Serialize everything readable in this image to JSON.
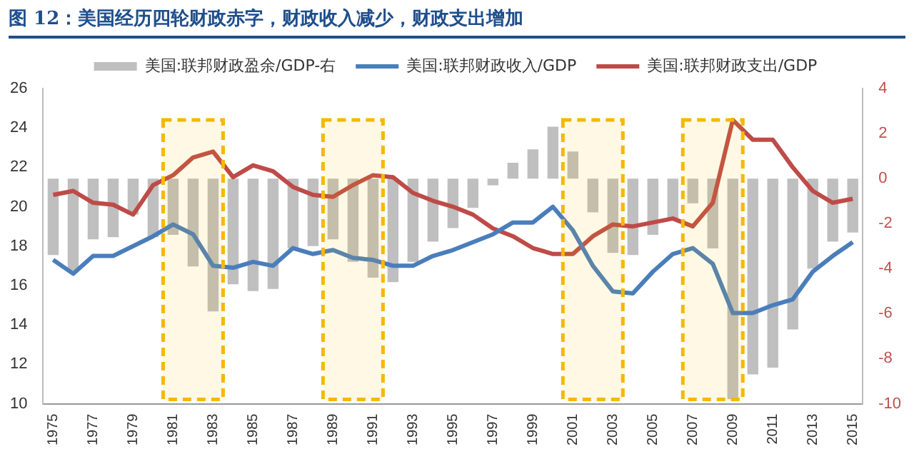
{
  "chart_data": {
    "type": "bar",
    "title": "图 12：美国经历四轮财政赤字，财政收入减少，财政支出增加",
    "categories": [
      "1975",
      null,
      "1977",
      null,
      "1979",
      null,
      "1981",
      null,
      "1983",
      null,
      "1985",
      null,
      "1987",
      null,
      "1989",
      null,
      "1991",
      null,
      "1993",
      null,
      "1995",
      null,
      "1997",
      null,
      "1999",
      null,
      "2001",
      null,
      "2003",
      null,
      "2005",
      null,
      "2007",
      null,
      "2009",
      null,
      "2011",
      null,
      "2013",
      null,
      "2015"
    ],
    "series": [
      {
        "name": "美国:联邦财政盈余/GDP-右",
        "axis": "y2",
        "color": "#bfbfbf",
        "values": [
          -3.4,
          -4.1,
          -2.7,
          -2.6,
          -1.6,
          -2.6,
          -2.5,
          -3.9,
          -5.9,
          -4.7,
          -5.0,
          -4.9,
          -3.1,
          -3.0,
          -2.7,
          -3.7,
          -4.4,
          -4.6,
          -3.7,
          -2.8,
          -2.2,
          -1.3,
          -0.3,
          0.7,
          1.3,
          2.3,
          1.2,
          -1.5,
          -3.3,
          -3.4,
          -2.5,
          -1.8,
          -1.1,
          -3.1,
          -9.8,
          -8.7,
          -8.4,
          -6.7,
          -4.0,
          -2.8,
          -2.4
        ]
      },
      {
        "name": "美国:联邦财政收入/GDP",
        "type": "line",
        "axis": "y",
        "color": "#4a7ebb",
        "values": [
          17.3,
          16.6,
          17.5,
          17.5,
          18.0,
          18.5,
          19.1,
          18.6,
          17.0,
          16.9,
          17.2,
          17.0,
          17.9,
          17.6,
          17.8,
          17.4,
          17.3,
          17.0,
          17.0,
          17.5,
          17.8,
          18.2,
          18.6,
          19.2,
          19.2,
          20.0,
          18.8,
          17.0,
          15.7,
          15.6,
          16.7,
          17.6,
          17.9,
          17.1,
          14.6,
          14.6,
          15.0,
          15.3,
          16.7,
          17.5,
          18.2
        ]
      },
      {
        "name": "美国:联邦财政支出/GDP",
        "type": "line",
        "axis": "y",
        "color": "#be4b48",
        "values": [
          20.6,
          20.8,
          20.2,
          20.1,
          19.6,
          21.1,
          21.6,
          22.5,
          22.8,
          21.5,
          22.1,
          21.8,
          21.0,
          20.6,
          20.5,
          21.1,
          21.6,
          21.5,
          20.7,
          20.3,
          20.0,
          19.6,
          18.9,
          18.5,
          17.9,
          17.6,
          17.6,
          18.5,
          19.1,
          19.0,
          19.2,
          19.4,
          19.0,
          20.2,
          24.4,
          23.4,
          23.4,
          22.0,
          20.8,
          20.2,
          20.4
        ]
      }
    ],
    "ylim": [
      10,
      26
    ],
    "yticks": [
      10,
      12,
      14,
      16,
      18,
      20,
      22,
      24,
      26
    ],
    "y2lim": [
      -10,
      4
    ],
    "y2ticks": [
      -10,
      -8,
      -6,
      -4,
      -2,
      0,
      2,
      4
    ],
    "bands": [
      {
        "axis": "x",
        "from": "1981",
        "to": "1983",
        "color": "#f5b800"
      },
      {
        "axis": "x",
        "from": "1989",
        "to": "1991",
        "color": "#f5b800"
      },
      {
        "axis": "x",
        "from": "2001",
        "to": "2003",
        "color": "#f5b800"
      },
      {
        "axis": "x",
        "from": "2007",
        "to": "2009",
        "color": "#f5b800"
      }
    ],
    "grid": false,
    "legend": "top",
    "marker": "none",
    "line_style": "solid"
  }
}
